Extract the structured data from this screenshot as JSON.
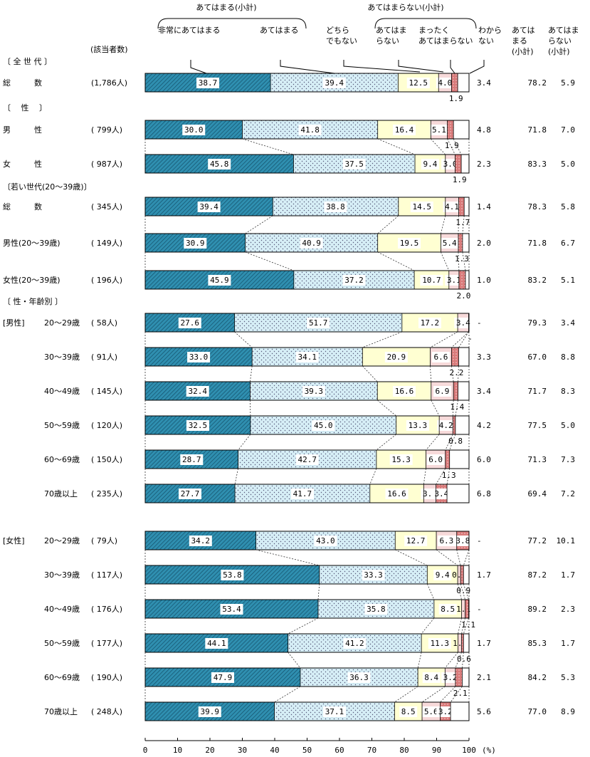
{
  "chart_data": {
    "type": "bar",
    "orientation": "horizontal-stacked-100",
    "header": {
      "group_applies": "あてはまる(小計)",
      "group_not_applies": "あてはまらない(小計)",
      "count_label": "(該当者数)",
      "unit": "(%)"
    },
    "series": [
      {
        "name": "非常にあてはまる",
        "color": "#2f8fb0"
      },
      {
        "name": "あてはまる",
        "color": "#d6eef6"
      },
      {
        "name": "どちらでもない",
        "color": "#ffffd2"
      },
      {
        "name": "あてはまらない",
        "color": "#f7dada"
      },
      {
        "name": "まったくあてはまらない",
        "color": "#d97a7a"
      },
      {
        "name": "わからない",
        "color": "#ffffff"
      }
    ],
    "series_labels": {
      "s1": "非常にあてはまる",
      "s2": "あてはまる",
      "s3a": "どちら",
      "s3b": "でもない",
      "s4a": "あてはま",
      "s4b": "らない",
      "s5a": "まったく",
      "s5b": "あてはまらない",
      "s6a": "わから",
      "s6b": "ない",
      "sum1a": "あては",
      "sum1b": "まる",
      "sum1c": "(小計)",
      "sum2a": "あてはま",
      "sum2b": "らない",
      "sum2c": "(小計)"
    },
    "section_headings": [
      "〔 全 世 代 〕",
      "〔　 性 　〕",
      "〔若い世代(20～39歳)〕",
      "〔 性・年齢別 〕",
      "[男性]",
      "[女性]"
    ],
    "xlim": [
      0,
      100
    ],
    "xticks": [
      "0",
      "10",
      "20",
      "30",
      "40",
      "50",
      "60",
      "70",
      "80",
      "90",
      "100"
    ],
    "rows": [
      {
        "label": "総　　　数",
        "n": "(1,786人)",
        "values": [
          38.7,
          39.4,
          12.5,
          4.0,
          1.9,
          3.4
        ],
        "labels": [
          "38.7",
          "39.4",
          "12.5",
          "4.0",
          "1.9",
          "3.4"
        ],
        "sum_applies": "78.2",
        "sum_not": "5.9"
      },
      {
        "label": "男　　　性",
        "n": "( 799人)",
        "values": [
          30.0,
          41.8,
          16.4,
          5.1,
          1.9,
          4.8
        ],
        "labels": [
          "30.0",
          "41.8",
          "16.4",
          "5.1",
          "1.9",
          "4.8"
        ],
        "sum_applies": "71.8",
        "sum_not": "7.0"
      },
      {
        "label": "女　　　性",
        "n": "( 987人)",
        "values": [
          45.8,
          37.5,
          9.4,
          3.0,
          1.9,
          2.3
        ],
        "labels": [
          "45.8",
          "37.5",
          "9.4",
          "3.0",
          "1.9",
          "2.3"
        ],
        "sum_applies": "83.3",
        "sum_not": "5.0"
      },
      {
        "label": "総　　　数",
        "n": "( 345人)",
        "values": [
          39.4,
          38.8,
          14.5,
          4.1,
          1.7,
          1.4
        ],
        "labels": [
          "39.4",
          "38.8",
          "14.5",
          "4.1",
          "1.7",
          "1.4"
        ],
        "sum_applies": "78.3",
        "sum_not": "5.8"
      },
      {
        "label": "男性(20～39歳)",
        "n": "( 149人)",
        "values": [
          30.9,
          40.9,
          19.5,
          5.4,
          1.3,
          2.0
        ],
        "labels": [
          "30.9",
          "40.9",
          "19.5",
          "5.4",
          "1.3",
          "2.0"
        ],
        "sum_applies": "71.8",
        "sum_not": "6.7"
      },
      {
        "label": "女性(20～39歳)",
        "n": "( 196人)",
        "values": [
          45.9,
          37.2,
          10.7,
          3.1,
          2.0,
          1.0
        ],
        "labels": [
          "45.9",
          "37.2",
          "10.7",
          "3.1",
          "2.0",
          "1.0"
        ],
        "sum_applies": "83.2",
        "sum_not": "5.1"
      },
      {
        "label": "20～29歳",
        "n": "( 58人)",
        "values": [
          27.6,
          51.7,
          17.2,
          3.4,
          0,
          0
        ],
        "labels": [
          "27.6",
          "51.7",
          "17.2",
          "3.4",
          "-",
          "-"
        ],
        "sum_applies": "79.3",
        "sum_not": "3.4"
      },
      {
        "label": "30～39歳",
        "n": "( 91人)",
        "values": [
          33.0,
          34.1,
          20.9,
          6.6,
          2.2,
          3.3
        ],
        "labels": [
          "33.0",
          "34.1",
          "20.9",
          "6.6",
          "2.2",
          "3.3"
        ],
        "sum_applies": "67.0",
        "sum_not": "8.8"
      },
      {
        "label": "40～49歳",
        "n": "( 145人)",
        "values": [
          32.4,
          39.3,
          16.6,
          6.9,
          1.4,
          3.4
        ],
        "labels": [
          "32.4",
          "39.3",
          "16.6",
          "6.9",
          "1.4",
          "3.4"
        ],
        "sum_applies": "71.7",
        "sum_not": "8.3"
      },
      {
        "label": "50～59歳",
        "n": "( 120人)",
        "values": [
          32.5,
          45.0,
          13.3,
          4.2,
          0.8,
          4.2
        ],
        "labels": [
          "32.5",
          "45.0",
          "13.3",
          "4.2",
          "0.8",
          "4.2"
        ],
        "sum_applies": "77.5",
        "sum_not": "5.0"
      },
      {
        "label": "60～69歳",
        "n": "( 150人)",
        "values": [
          28.7,
          42.7,
          15.3,
          6.0,
          1.3,
          6.0
        ],
        "labels": [
          "28.7",
          "42.7",
          "15.3",
          "6.0",
          "1.3",
          "6.0"
        ],
        "sum_applies": "71.3",
        "sum_not": "7.3"
      },
      {
        "label": "70歳以上",
        "n": "( 235人)",
        "values": [
          27.7,
          41.7,
          16.6,
          3.8,
          3.4,
          6.8
        ],
        "labels": [
          "27.7",
          "41.7",
          "16.6",
          "3.8",
          "3.4",
          "6.8"
        ],
        "sum_applies": "69.4",
        "sum_not": "7.2"
      },
      {
        "label": "20～29歳",
        "n": "( 79人)",
        "values": [
          34.2,
          43.0,
          12.7,
          6.3,
          3.8,
          0
        ],
        "labels": [
          "34.2",
          "43.0",
          "12.7",
          "6.3",
          "3.8",
          "-"
        ],
        "sum_applies": "77.2",
        "sum_not": "10.1"
      },
      {
        "label": "30～39歳",
        "n": "( 117人)",
        "values": [
          53.8,
          33.3,
          9.4,
          0.9,
          0.9,
          1.7
        ],
        "labels": [
          "53.8",
          "33.3",
          "9.4",
          "0.9",
          "0.9",
          "1.7"
        ],
        "sum_applies": "87.2",
        "sum_not": "1.7"
      },
      {
        "label": "40～49歳",
        "n": "( 176人)",
        "values": [
          53.4,
          35.8,
          8.5,
          1.1,
          1.1,
          0
        ],
        "labels": [
          "53.4",
          "35.8",
          "8.5",
          "1.1",
          "1.1",
          "-"
        ],
        "sum_applies": "89.2",
        "sum_not": "2.3"
      },
      {
        "label": "50～59歳",
        "n": "( 177人)",
        "values": [
          44.1,
          41.2,
          11.3,
          1.1,
          0.6,
          1.7
        ],
        "labels": [
          "44.1",
          "41.2",
          "11.3",
          "1.1",
          "0.6",
          "1.7"
        ],
        "sum_applies": "85.3",
        "sum_not": "1.7"
      },
      {
        "label": "60～69歳",
        "n": "( 190人)",
        "values": [
          47.9,
          36.3,
          8.4,
          3.2,
          2.1,
          2.1
        ],
        "labels": [
          "47.9",
          "36.3",
          "8.4",
          "3.2",
          "2.1",
          "2.1"
        ],
        "sum_applies": "84.2",
        "sum_not": "5.3"
      },
      {
        "label": "70歳以上",
        "n": "( 248人)",
        "values": [
          39.9,
          37.1,
          8.5,
          5.6,
          3.2,
          5.6
        ],
        "labels": [
          "39.9",
          "37.1",
          "8.5",
          "5.6",
          "3.2",
          "5.6"
        ],
        "sum_applies": "77.0",
        "sum_not": "8.9"
      }
    ]
  }
}
